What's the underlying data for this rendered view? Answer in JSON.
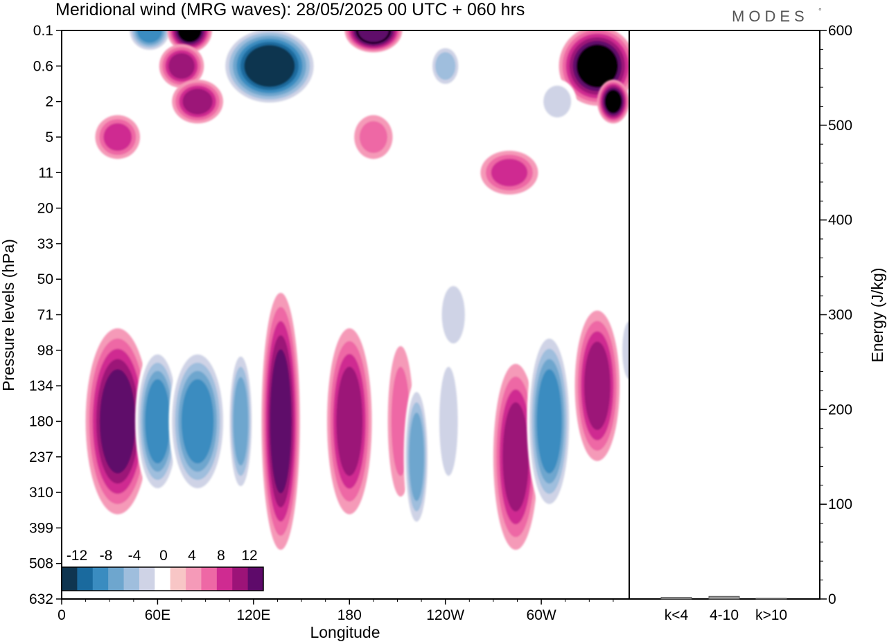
{
  "header": {
    "title": "Meridional wind (MRG waves):  28/05/2025  00 UTC  + 060 hrs",
    "brand": "MODES",
    "brand_mark": "°"
  },
  "chart_data": [
    {
      "type": "heatmap",
      "xlabel": "Longitude",
      "ylabel": "Pressure levels (hPa)",
      "x_ticks": [
        "0",
        "60E",
        "120E",
        "180",
        "120W",
        "60W"
      ],
      "x_tick_values_deg": [
        0,
        60,
        120,
        180,
        240,
        300
      ],
      "xlim": [
        0,
        355
      ],
      "y_ticks": [
        "0.1",
        "0.6",
        "2",
        "5",
        "11",
        "20",
        "33",
        "50",
        "71",
        "98",
        "134",
        "180",
        "237",
        "310",
        "399",
        "508",
        "632"
      ],
      "colorbar": {
        "labels": [
          "-12",
          "-8",
          "-4",
          "0",
          "4",
          "8",
          "12"
        ],
        "levels": [
          -14,
          -12,
          -10,
          -8,
          -6,
          -4,
          -2,
          2,
          4,
          6,
          8,
          10,
          12,
          14
        ],
        "colors": [
          "#0f3550",
          "#1a6a9e",
          "#3a8cc0",
          "#6ea6ce",
          "#9fbedd",
          "#cfd3e6",
          "#ffffff",
          "#f8c6c6",
          "#f59ab8",
          "#ee68a5",
          "#cf2b91",
          "#9c1378",
          "#5e0a6a"
        ]
      },
      "features": [
        {
          "lon": 35,
          "level": "180",
          "value": 10,
          "lon_width": 20,
          "level_span": 5
        },
        {
          "lon": 60,
          "level": "180",
          "value": -9,
          "lon_width": 14,
          "level_span": 4
        },
        {
          "lon": 85,
          "level": "180",
          "value": -10,
          "lon_width": 18,
          "level_span": 4
        },
        {
          "lon": 112,
          "level": "180",
          "value": -7,
          "lon_width": 8,
          "level_span": 4
        },
        {
          "lon": 137,
          "level": "180",
          "value": 10,
          "lon_width": 12,
          "level_span": 7
        },
        {
          "lon": 180,
          "level": "180",
          "value": 7,
          "lon_width": 14,
          "level_span": 5
        },
        {
          "lon": 212,
          "level": "180",
          "value": 3,
          "lon_width": 8,
          "level_span": 4
        },
        {
          "lon": 222,
          "level": "237",
          "value": -7,
          "lon_width": 8,
          "level_span": 4
        },
        {
          "lon": 242,
          "level": "180",
          "value": -3,
          "lon_width": 8,
          "level_span": 4
        },
        {
          "lon": 284,
          "level": "237",
          "value": 8,
          "lon_width": 14,
          "level_span": 5
        },
        {
          "lon": 305,
          "level": "180",
          "value": -9,
          "lon_width": 14,
          "level_span": 5
        },
        {
          "lon": 335,
          "level": "134",
          "value": 8,
          "lon_width": 14,
          "level_span": 4
        },
        {
          "lon": 355,
          "level": "98",
          "value": -4,
          "lon_width": 6,
          "level_span": 2
        },
        {
          "lon": 245,
          "level": "71",
          "value": -3,
          "lon_width": 10,
          "level_span": 2
        },
        {
          "lon": 55,
          "level": "0.1",
          "value": -10,
          "lon_width": 14,
          "level_span": 1
        },
        {
          "lon": 80,
          "level": "0.1",
          "value": 12,
          "lon_width": 14,
          "level_span": 1
        },
        {
          "lon": 130,
          "level": "0.6",
          "value": -14,
          "lon_width": 30,
          "level_span": 2
        },
        {
          "lon": 195,
          "level": "0.1",
          "value": 14,
          "lon_width": 18,
          "level_span": 1
        },
        {
          "lon": 335,
          "level": "0.6",
          "value": 12,
          "lon_width": 24,
          "level_span": 2
        },
        {
          "lon": 345,
          "level": "2",
          "value": 12,
          "lon_width": 10,
          "level_span": 1
        },
        {
          "lon": 75,
          "level": "0.6",
          "value": 8,
          "lon_width": 14,
          "level_span": 1
        },
        {
          "lon": 85,
          "level": "2",
          "value": 8,
          "lon_width": 16,
          "level_span": 1
        },
        {
          "lon": 35,
          "level": "5",
          "value": 6,
          "lon_width": 14,
          "level_span": 1
        },
        {
          "lon": 195,
          "level": "5",
          "value": 4,
          "lon_width": 12,
          "level_span": 1
        },
        {
          "lon": 240,
          "level": "0.6",
          "value": -6,
          "lon_width": 10,
          "level_span": 1
        },
        {
          "lon": 280,
          "level": "11",
          "value": 5,
          "lon_width": 18,
          "level_span": 1
        },
        {
          "lon": 310,
          "level": "2",
          "value": -4,
          "lon_width": 12,
          "level_span": 1
        }
      ]
    },
    {
      "type": "bar",
      "ylabel": "Energy (J/kg)",
      "categories": [
        "k<4",
        "4-10",
        "k>10"
      ],
      "values": [
        1,
        2,
        0
      ],
      "ylim": [
        0,
        600
      ],
      "y_ticks": [
        "0",
        "100",
        "200",
        "300",
        "400",
        "500",
        "600"
      ]
    }
  ]
}
